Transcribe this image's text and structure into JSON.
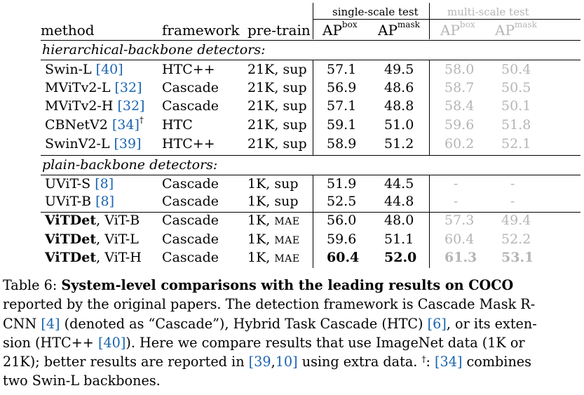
{
  "table": {
    "group_single": "single-scale test",
    "group_multi": "multi-scale test",
    "headers": {
      "method": "method",
      "framework": "framework",
      "pretrain": "pre-train",
      "ap": "AP",
      "box": "box",
      "mask": "mask"
    },
    "section_hier": "hierarchical-backbone detectors:",
    "section_plain": "plain-backbone detectors:",
    "hier_rows": [
      {
        "name": "Swin-L ",
        "cite": "[40]",
        "dagger": "",
        "framework": "HTC++",
        "pretrain": "21K, sup",
        "box": "57.1",
        "mask": "49.5",
        "ms_box": "58.0",
        "ms_mask": "50.4"
      },
      {
        "name": "MViTv2-L ",
        "cite": "[32]",
        "dagger": "",
        "framework": "Cascade",
        "pretrain": "21K, sup",
        "box": "56.9",
        "mask": "48.6",
        "ms_box": "58.7",
        "ms_mask": "50.5"
      },
      {
        "name": "MViTv2-H ",
        "cite": "[32]",
        "dagger": "",
        "framework": "Cascade",
        "pretrain": "21K, sup",
        "box": "57.1",
        "mask": "48.8",
        "ms_box": "58.4",
        "ms_mask": "50.1"
      },
      {
        "name": "CBNetV2 ",
        "cite": "[34]",
        "dagger": "†",
        "framework": "HTC",
        "pretrain": "21K, sup",
        "box": "59.1",
        "mask": "51.0",
        "ms_box": "59.6",
        "ms_mask": "51.8"
      },
      {
        "name": "SwinV2-L ",
        "cite": "[39]",
        "dagger": "",
        "framework": "HTC++",
        "pretrain": "21K, sup",
        "box": "58.9",
        "mask": "51.2",
        "ms_box": "60.2",
        "ms_mask": "52.1"
      }
    ],
    "plain_uvit": [
      {
        "name": "UViT-S ",
        "cite": "[8]",
        "framework": "Cascade",
        "pretrain": "1K, sup",
        "box": "51.9",
        "mask": "44.5",
        "ms_box": "-",
        "ms_mask": "-"
      },
      {
        "name": "UViT-B ",
        "cite": "[8]",
        "framework": "Cascade",
        "pretrain": "1K, sup",
        "box": "52.5",
        "mask": "44.8",
        "ms_box": "-",
        "ms_mask": "-"
      }
    ],
    "plain_vitdet": [
      {
        "bold": "ViTDet",
        "rest": ", ViT-B",
        "framework": "Cascade",
        "pre_a": "1K, ",
        "pre_b": "MAE",
        "box": "56.0",
        "mask": "48.0",
        "ms_box": "57.3",
        "ms_mask": "49.4"
      },
      {
        "bold": "ViTDet",
        "rest": ", ViT-L",
        "framework": "Cascade",
        "pre_a": "1K, ",
        "pre_b": "MAE",
        "box": "59.6",
        "mask": "51.1",
        "ms_box": "60.4",
        "ms_mask": "52.2"
      },
      {
        "bold": "ViTDet",
        "rest": ", ViT-H",
        "framework": "Cascade",
        "pre_a": "1K, ",
        "pre_b": "MAE",
        "box": "60.4",
        "mask": "52.0",
        "ms_box": "61.3",
        "ms_mask": "53.1"
      }
    ]
  },
  "caption": {
    "l1a": "Table 6: ",
    "l1b": "System-level comparisons with the leading results on COCO",
    "l2": "reported by the original papers. The detection framework is Cascade Mask R-",
    "l3a": "CNN ",
    "l3c4": "[4]",
    "l3b": " (denoted as “Cascade”), Hybrid Task Cascade (HTC) ",
    "l3c6": "[6]",
    "l3c": ", or its exten-",
    "l4a": "sion (HTC++ ",
    "l4c40": "[40]",
    "l4b": "). Here we compare results that use ImageNet data (1K or",
    "l5a": "21K); better results are reported in ",
    "l5lb": "[",
    "l5c39": "39",
    "l5comma": ",",
    "l5c10": "10",
    "l5rb": "]",
    "l5b": " using extra data. ",
    "l5dag": "†",
    "l5c": ": ",
    "l5c34": "[34]",
    "l5d": " combines",
    "l6": "two Swin-L backbones."
  }
}
